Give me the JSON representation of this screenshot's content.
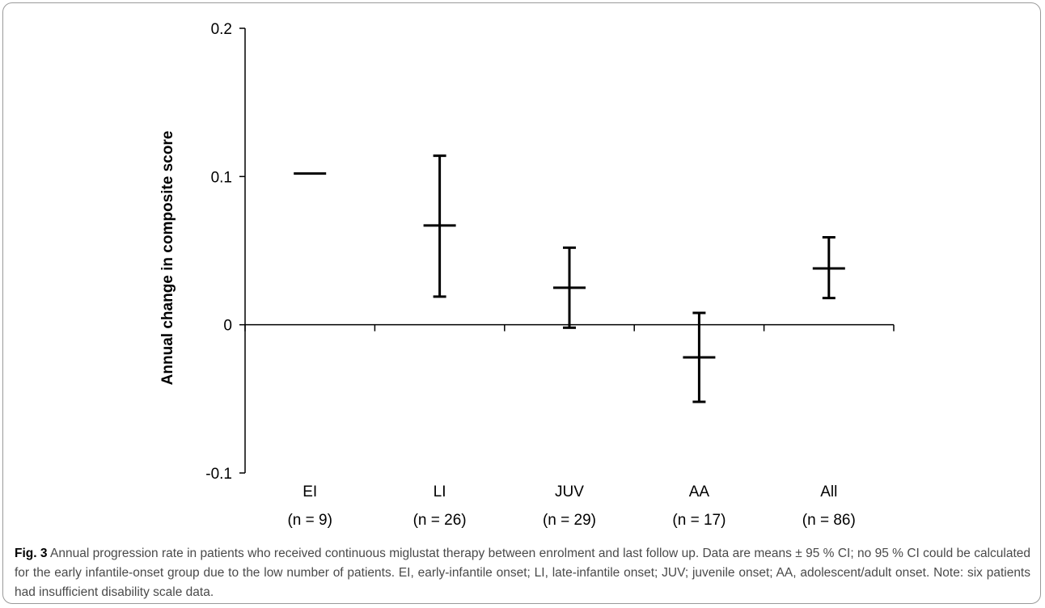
{
  "caption": {
    "label": "Fig. 3",
    "text": " Annual progression rate in patients who received continuous miglustat therapy between enrolment and last follow up. Data are means ± 95 % CI; no 95 % CI could be calculated for the early infantile-onset group due to the low number of patients. EI, early-infantile onset; LI, late-infantile onset; JUV; juvenile onset; AA, adolescent/adult onset. Note: six patients had insufficient disability scale data."
  },
  "chart_data": {
    "type": "errorbar",
    "title": "",
    "ylabel": "Annual change in composite score",
    "xlabel": "",
    "ylim": [
      -0.1,
      0.2
    ],
    "yticks": [
      {
        "value": 0.2,
        "label": "0.2"
      },
      {
        "value": 0.1,
        "label": "0.1"
      },
      {
        "value": 0,
        "label": "0"
      },
      {
        "value": -0.1,
        "label": "-0.1"
      }
    ],
    "grid": false,
    "categories": [
      {
        "label": "EI",
        "n_label": "(n = 9)",
        "mean": 0.102,
        "lower": null,
        "upper": null
      },
      {
        "label": "LI",
        "n_label": "(n = 26)",
        "mean": 0.067,
        "lower": 0.019,
        "upper": 0.114
      },
      {
        "label": "JUV",
        "n_label": "(n = 29)",
        "mean": 0.025,
        "lower": -0.002,
        "upper": 0.052
      },
      {
        "label": "AA",
        "n_label": "(n = 17)",
        "mean": -0.022,
        "lower": -0.052,
        "upper": 0.008
      },
      {
        "label": "All",
        "n_label": "(n = 86)",
        "mean": 0.038,
        "lower": 0.018,
        "upper": 0.059
      }
    ]
  }
}
